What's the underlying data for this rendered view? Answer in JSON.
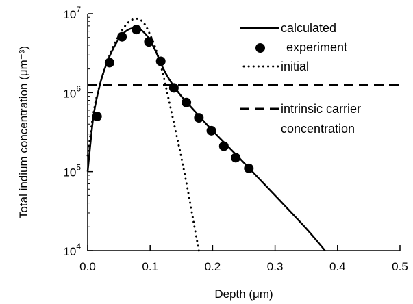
{
  "chart_data": {
    "type": "line",
    "xlabel": "Depth (μm)",
    "ylabel": "Total indium concentration (μm⁻³)",
    "xlim": [
      0,
      0.5
    ],
    "ylim": [
      10000,
      10000000
    ],
    "yscale": "log",
    "x_ticks": [
      0.0,
      0.1,
      0.2,
      0.3,
      0.4,
      0.5
    ],
    "x_tick_labels": [
      "0.0",
      "0.1",
      "0.2",
      "0.3",
      "0.4",
      "0.5"
    ],
    "y_ticks": [
      10000,
      100000,
      1000000,
      10000000
    ],
    "y_tick_labels": [
      {
        "base": "10",
        "exp": "4"
      },
      {
        "base": "10",
        "exp": "5"
      },
      {
        "base": "10",
        "exp": "6"
      },
      {
        "base": "10",
        "exp": "7"
      }
    ],
    "grid": false,
    "legend_position": "top-right",
    "series": [
      {
        "name": "calculated",
        "style": "solid",
        "color": "#000000",
        "x": [
          0.0,
          0.005,
          0.01,
          0.02,
          0.03,
          0.04,
          0.05,
          0.06,
          0.07,
          0.08,
          0.09,
          0.1,
          0.11,
          0.12,
          0.13,
          0.14,
          0.15,
          0.17,
          0.2,
          0.25,
          0.3,
          0.35,
          0.38
        ],
        "y": [
          100000,
          250000,
          550000,
          1300000,
          2300000,
          3500000,
          4800000,
          5900000,
          6500000,
          6500000,
          5800000,
          4600000,
          3200000,
          2100000,
          1500000,
          1150000,
          900000,
          600000,
          330000,
          130000,
          50000,
          19000,
          10000
        ]
      },
      {
        "name": "experiment",
        "style": "markers",
        "color": "#000000",
        "x": [
          0.015,
          0.035,
          0.055,
          0.078,
          0.098,
          0.117,
          0.138,
          0.158,
          0.178,
          0.198,
          0.218,
          0.237,
          0.258
        ],
        "y": [
          500000,
          2400000,
          5100000,
          6300000,
          4400000,
          2500000,
          1150000,
          750000,
          480000,
          330000,
          210000,
          150000,
          110000
        ]
      },
      {
        "name": "initial",
        "style": "dotted",
        "color": "#000000",
        "x": [
          0.0,
          0.01,
          0.02,
          0.03,
          0.04,
          0.05,
          0.06,
          0.07,
          0.08,
          0.09,
          0.1,
          0.11,
          0.12,
          0.13,
          0.14,
          0.15,
          0.16,
          0.17,
          0.178
        ],
        "y": [
          160000,
          600000,
          1300000,
          2300000,
          3700000,
          5300000,
          7000000,
          8300000,
          8600000,
          7600000,
          5400000,
          3400000,
          1800000,
          800000,
          350000,
          150000,
          60000,
          22000,
          10000
        ]
      },
      {
        "name": "intrinsic carrier concentration",
        "legend_lines": [
          "intrinsic carrier",
          "concentration"
        ],
        "style": "dashed",
        "color": "#000000",
        "x": [
          0.0,
          0.5
        ],
        "y": [
          1250000,
          1250000
        ]
      }
    ]
  }
}
